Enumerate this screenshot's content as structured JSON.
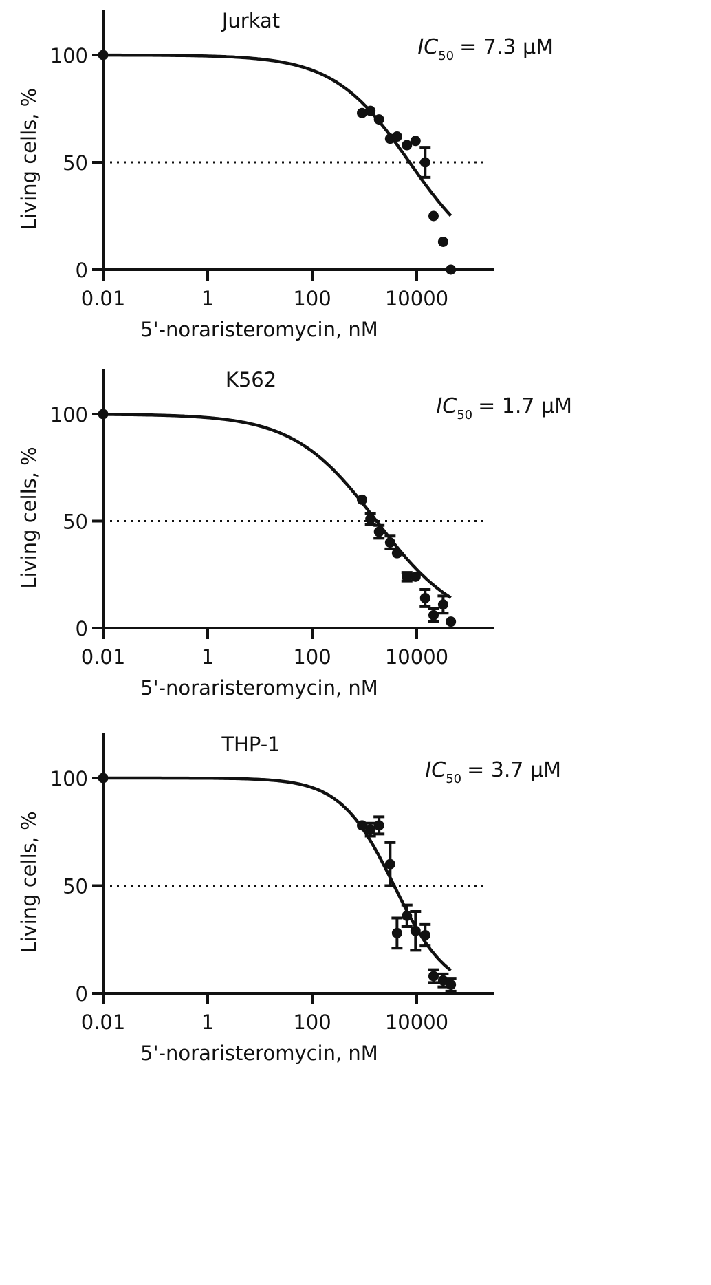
{
  "chart_data": [
    {
      "type": "scatter",
      "title": "Jurkat",
      "annotation": {
        "ic_symbol": "IC",
        "ic_subscript": "50",
        "ic_value": "= 7.3 μM"
      },
      "xlabel": "5'-noraristeromycin, nM",
      "ylabel": "Living cells, %",
      "x_scale": "log10",
      "xlim": [
        0.01,
        300000
      ],
      "ylim": [
        0,
        120
      ],
      "x_ticks": [
        0.01,
        1,
        100,
        10000
      ],
      "x_tick_labels": [
        "0.01",
        "1",
        "100",
        "10000"
      ],
      "y_ticks": [
        0,
        50,
        100
      ],
      "y_tick_labels": [
        "0",
        "50",
        "100"
      ],
      "reference_line": {
        "y": 50,
        "style": "dotted"
      },
      "fit_curve": {
        "top": 100,
        "bottom": 0,
        "ic50_nM": 7300,
        "hill_slope": 0.6,
        "x_range": [
          0.01,
          45000
        ]
      },
      "points": [
        {
          "x": 0.01,
          "y": 100
        },
        {
          "x": 900,
          "y": 73
        },
        {
          "x": 1300,
          "y": 74
        },
        {
          "x": 1900,
          "y": 70
        },
        {
          "x": 3100,
          "y": 61
        },
        {
          "x": 4200,
          "y": 62
        },
        {
          "x": 6500,
          "y": 58
        },
        {
          "x": 9500,
          "y": 60
        },
        {
          "x": 14500,
          "y": 50,
          "err": 7
        },
        {
          "x": 21000,
          "y": 25
        },
        {
          "x": 32000,
          "y": 13
        },
        {
          "x": 45000,
          "y": 0
        }
      ]
    },
    {
      "type": "scatter",
      "title": "K562",
      "annotation": {
        "ic_symbol": "IC",
        "ic_subscript": "50",
        "ic_value": "= 1.7 μM"
      },
      "xlabel": "5'-noraristeromycin, nM",
      "ylabel": "Living cells, %",
      "x_scale": "log10",
      "xlim": [
        0.01,
        300000
      ],
      "ylim": [
        0,
        120
      ],
      "x_ticks": [
        0.01,
        1,
        100,
        10000
      ],
      "x_tick_labels": [
        "0.01",
        "1",
        "100",
        "10000"
      ],
      "y_ticks": [
        0,
        50,
        100
      ],
      "y_tick_labels": [
        "0",
        "50",
        "100"
      ],
      "reference_line": {
        "y": 50,
        "style": "dotted"
      },
      "fit_curve": {
        "top": 100,
        "bottom": 0,
        "ic50_nM": 1700,
        "hill_slope": 0.55,
        "x_range": [
          0.01,
          45000
        ]
      },
      "points": [
        {
          "x": 0.01,
          "y": 100
        },
        {
          "x": 900,
          "y": 60
        },
        {
          "x": 1300,
          "y": 51,
          "err": 2.5
        },
        {
          "x": 1900,
          "y": 45,
          "err": 3
        },
        {
          "x": 3100,
          "y": 40,
          "err": 3
        },
        {
          "x": 4200,
          "y": 35
        },
        {
          "x": 6500,
          "y": 24,
          "err": 2
        },
        {
          "x": 9500,
          "y": 24
        },
        {
          "x": 14500,
          "y": 14,
          "err": 4
        },
        {
          "x": 21000,
          "y": 6,
          "err": 3
        },
        {
          "x": 32000,
          "y": 11,
          "err": 4
        },
        {
          "x": 45000,
          "y": 3
        }
      ]
    },
    {
      "type": "scatter",
      "title": "THP-1",
      "annotation": {
        "ic_symbol": "IC",
        "ic_subscript": "50",
        "ic_value": "= 3.7 μM"
      },
      "xlabel": "5'-noraristeromycin, nM",
      "ylabel": "Living cells, %",
      "x_scale": "log10",
      "xlim": [
        0.01,
        300000
      ],
      "ylim": [
        0,
        120
      ],
      "x_ticks": [
        0.01,
        1,
        100,
        10000
      ],
      "x_tick_labels": [
        "0.01",
        "1",
        "100",
        "10000"
      ],
      "y_ticks": [
        0,
        50,
        100
      ],
      "y_tick_labels": [
        "0",
        "50",
        "100"
      ],
      "reference_line": {
        "y": 50,
        "style": "dotted"
      },
      "fit_curve": {
        "top": 100,
        "bottom": 0,
        "ic50_nM": 3700,
        "hill_slope": 0.85,
        "x_range": [
          0.01,
          45000
        ]
      },
      "points": [
        {
          "x": 0.01,
          "y": 100
        },
        {
          "x": 900,
          "y": 78
        },
        {
          "x": 1300,
          "y": 76,
          "err": 3
        },
        {
          "x": 1900,
          "y": 78,
          "err": 4
        },
        {
          "x": 3100,
          "y": 60,
          "err": 10
        },
        {
          "x": 4200,
          "y": 28,
          "err": 7
        },
        {
          "x": 6500,
          "y": 36,
          "err": 5
        },
        {
          "x": 9500,
          "y": 29,
          "err": 9
        },
        {
          "x": 14500,
          "y": 27,
          "err": 5
        },
        {
          "x": 21000,
          "y": 8,
          "err": 3
        },
        {
          "x": 32000,
          "y": 6,
          "err": 3
        },
        {
          "x": 45000,
          "y": 4,
          "err": 3
        }
      ]
    }
  ]
}
